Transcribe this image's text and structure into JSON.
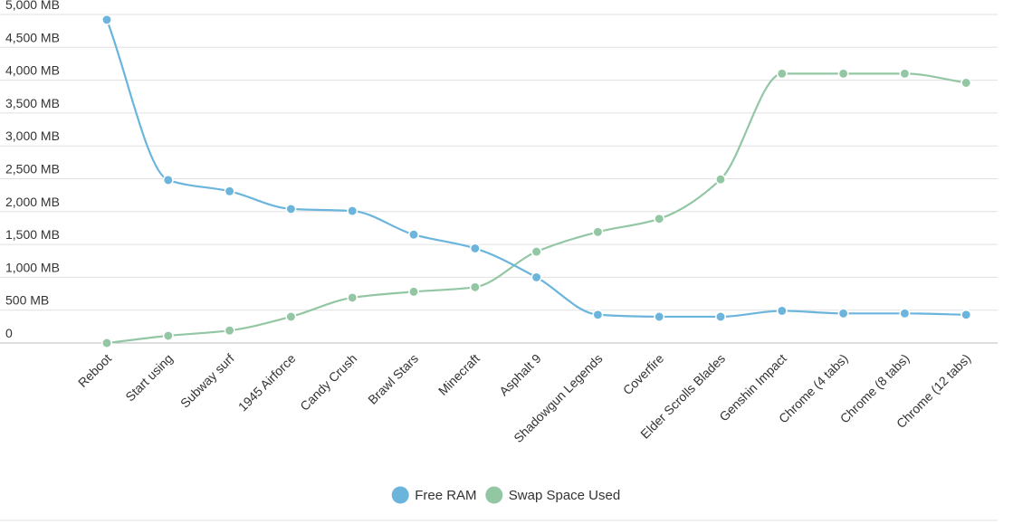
{
  "chart_data": {
    "type": "line",
    "categories": [
      "Reboot",
      "Start using",
      "Subway surf",
      "1945 Airforce",
      "Candy Crush",
      "Brawl Stars",
      "Minecraft",
      "Asphalt 9",
      "Shadowgun Legends",
      "Coverfire",
      "Elder Scrolls Blades",
      "Genshin Impact",
      "Chrome (4 tabs)",
      "Chrome (8 tabs)",
      "Chrome (12 tabs)"
    ],
    "series": [
      {
        "name": "Free RAM",
        "color": "#6BB5DD",
        "values": [
          4920,
          2480,
          2310,
          2040,
          2010,
          1650,
          1440,
          1000,
          430,
          400,
          400,
          490,
          450,
          450,
          430
        ]
      },
      {
        "name": "Swap Space Used",
        "color": "#93C7A4",
        "values": [
          0,
          110,
          190,
          400,
          690,
          780,
          850,
          1390,
          1690,
          1890,
          2490,
          4100,
          4100,
          4100,
          3960
        ]
      }
    ],
    "y_ticks": [
      "0",
      "500 MB",
      "1,000 MB",
      "1,500 MB",
      "2,000 MB",
      "2,500 MB",
      "3,000 MB",
      "3,500 MB",
      "4,000 MB",
      "4,500 MB",
      "5,000 MB"
    ],
    "ylim": [
      0,
      5000
    ],
    "grid": true,
    "legend_position": "bottom-center"
  }
}
